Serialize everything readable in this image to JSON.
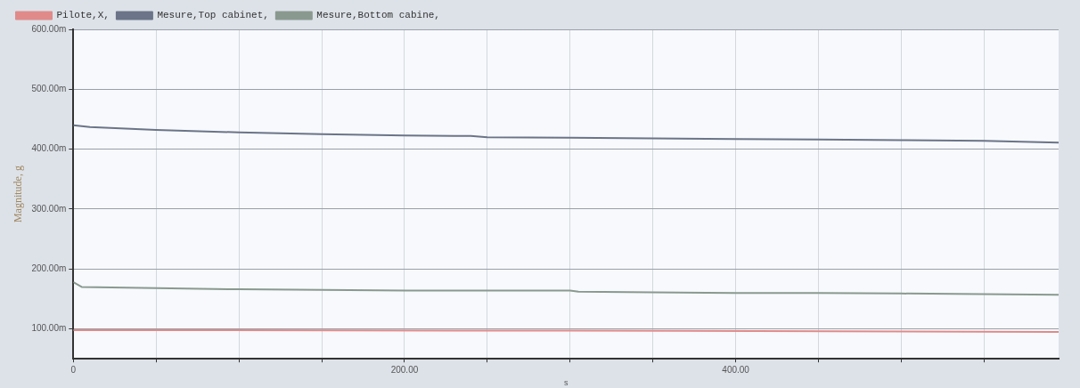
{
  "chart_data": {
    "type": "line",
    "ylabel": "Magnitude, g",
    "xlabel": "s",
    "xlim": [
      0,
      595
    ],
    "xticks": [
      {
        "value": 0,
        "label": "0"
      },
      {
        "value": 50,
        "label": null
      },
      {
        "value": 100,
        "label": null
      },
      {
        "value": 150,
        "label": null
      },
      {
        "value": 200,
        "label": "200.00"
      },
      {
        "value": 250,
        "label": null
      },
      {
        "value": 300,
        "label": null
      },
      {
        "value": 350,
        "label": null
      },
      {
        "value": 400,
        "label": "400.00"
      },
      {
        "value": 450,
        "label": null
      },
      {
        "value": 500,
        "label": null
      },
      {
        "value": 550,
        "label": null
      }
    ],
    "ylim": [
      50,
      600
    ],
    "yticks": [
      {
        "value": 100,
        "label": "100.00m"
      },
      {
        "value": 200,
        "label": "200.00m"
      },
      {
        "value": 300,
        "label": "300.00m"
      },
      {
        "value": 400,
        "label": "400.00m"
      },
      {
        "value": 500,
        "label": "500.00m"
      },
      {
        "value": 600,
        "label": "600.00m"
      }
    ],
    "grid": true,
    "legend": "top left",
    "marker": "none",
    "line_style": "solid",
    "series": [
      {
        "name": "Pilote,X,",
        "color": "#e08a8a",
        "x": [
          0,
          300,
          595
        ],
        "values": [
          98,
          97,
          95
        ]
      },
      {
        "name": "Mesure,Top cabinet,",
        "color": "#6b7488",
        "x": [
          0,
          10,
          50,
          100,
          150,
          200,
          240,
          250,
          300,
          350,
          400,
          450,
          500,
          550,
          595
        ],
        "values": [
          440,
          437,
          432,
          428,
          425,
          423,
          422,
          420,
          419,
          418,
          417,
          416,
          415,
          414,
          411
        ]
      },
      {
        "name": "Mesure,Bottom cabine,",
        "color": "#8a998f",
        "x": [
          0,
          5,
          50,
          100,
          150,
          200,
          300,
          305,
          350,
          400,
          450,
          500,
          595
        ],
        "values": [
          178,
          170,
          168,
          166,
          165,
          164,
          164,
          162,
          161,
          160,
          160,
          159,
          157
        ]
      }
    ]
  }
}
